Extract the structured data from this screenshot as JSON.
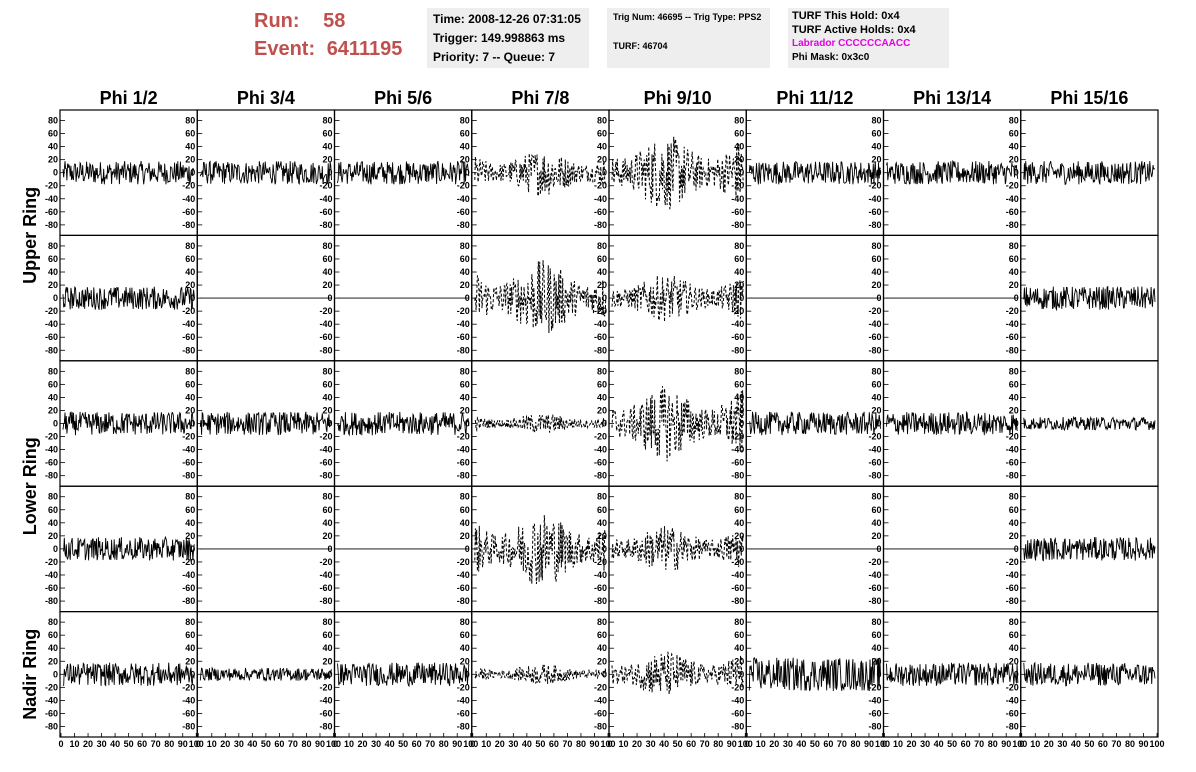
{
  "header": {
    "run_label": "Run:",
    "run_value": "58",
    "event_label": "Event:",
    "event_value": "6411195",
    "time": "Time: 2008-12-26 07:31:05",
    "trigger": "Trigger: 149.998863 ms",
    "priority": "Priority: 7 -- Queue: 7",
    "trig_num": "Trig Num: 46695 -- Trig Type: PPS2",
    "turf": "TURF: 46704",
    "turf_this_hold": "TURF This Hold: 0x4",
    "turf_active_holds": "TURF Active Holds: 0x4",
    "labrador": "Labrador CCCCCCAACC",
    "phi_mask": "Phi Mask: 0x3c0",
    "colors": {
      "run_event": "#c0504d",
      "labrador": "#e600e6",
      "info_bg": "#eeeeee"
    }
  },
  "columns": [
    "Phi 1/2",
    "Phi 3/4",
    "Phi 5/6",
    "Phi 7/8",
    "Phi 9/10",
    "Phi 11/12",
    "Phi 13/14",
    "Phi 15/16"
  ],
  "rows": [
    "Upper Ring",
    "Lower Ring",
    "Nadir Ring"
  ],
  "chart_data": {
    "type": "line",
    "ylim": [
      -90,
      90
    ],
    "xlim": [
      0,
      100
    ],
    "yticks": [
      "80",
      "60",
      "40",
      "20",
      "0",
      "-20",
      "-40",
      "-60",
      "-80"
    ],
    "xticks": [
      "0",
      "10",
      "20",
      "30",
      "40",
      "50",
      "60",
      "70",
      "80",
      "90",
      "100"
    ],
    "panels": [
      [
        "solid-medium",
        "solid-medium",
        "solid-medium",
        "dashed-medium",
        "dashed-high",
        "solid-medium",
        "solid-medium",
        "solid-medium"
      ],
      [
        "solid-medium",
        "flat",
        "flat",
        "dashed-high",
        "dashed-medium",
        "flat",
        "flat",
        "solid-medium"
      ],
      [
        "solid-medium",
        "solid-medium",
        "solid-medium",
        "dashed-low",
        "dashed-high",
        "solid-medium",
        "solid-medium",
        "solid-low"
      ],
      [
        "solid-medium",
        "flat",
        "flat",
        "dashed-high",
        "dashed-medium",
        "flat",
        "flat",
        "solid-medium"
      ],
      [
        "solid-medium",
        "solid-low",
        "solid-medium",
        "dashed-low",
        "dashed-medium",
        "solid-high",
        "solid-medium",
        "solid-medium"
      ]
    ],
    "amplitude": {
      "flat": 0,
      "solid-low": 10,
      "solid-medium": 18,
      "solid-high": 26,
      "dashed-low": 12,
      "dashed-medium": 28,
      "dashed-high": 45
    }
  }
}
